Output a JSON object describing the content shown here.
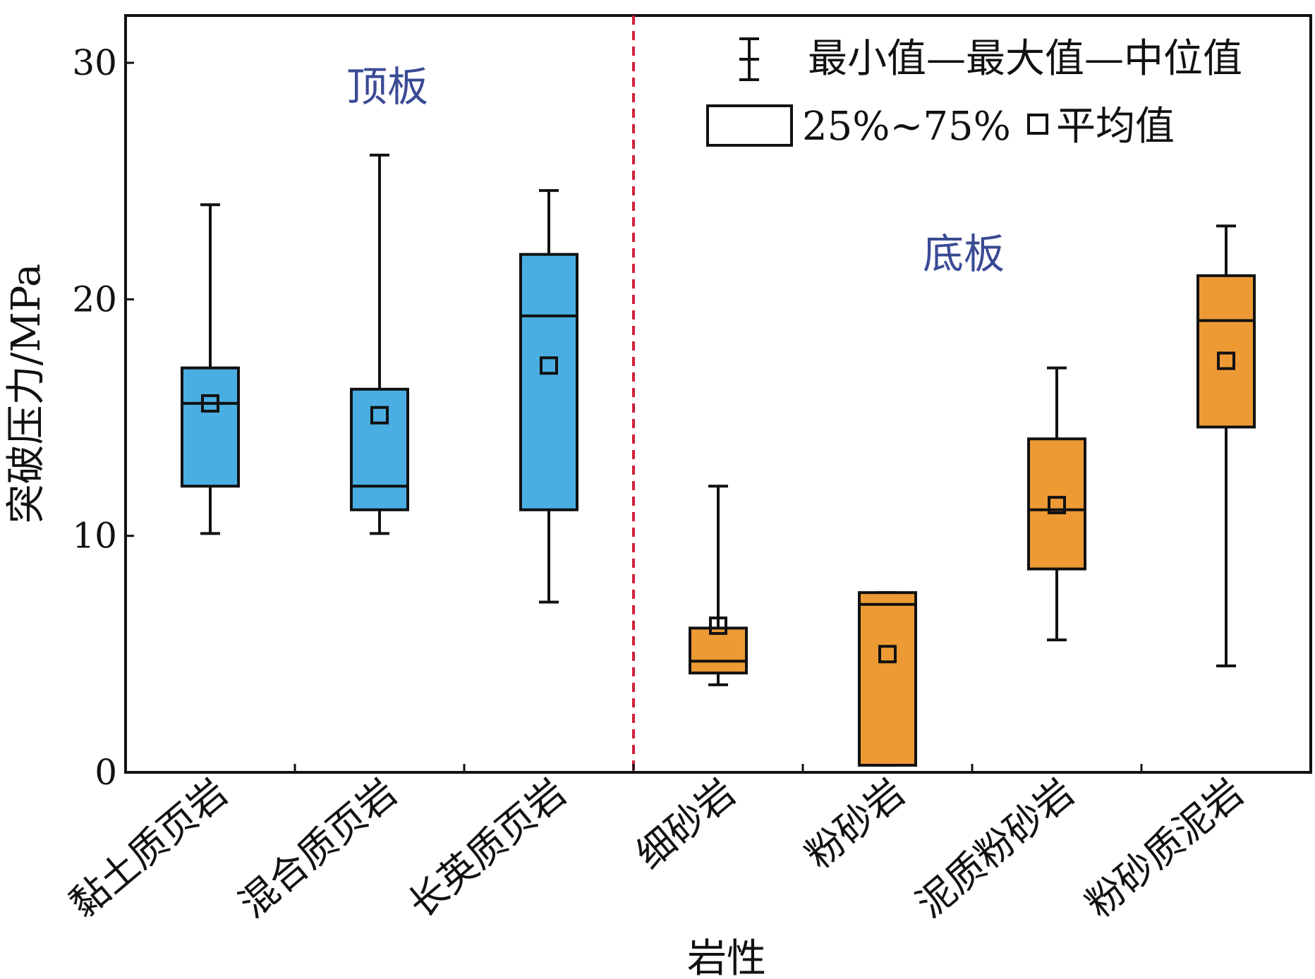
{
  "chart_data": {
    "type": "box",
    "ylabel": "突破压力/MPa",
    "xlabel": "岩性",
    "ylim": [
      0,
      32
    ],
    "yticks": [
      0,
      10,
      20,
      30
    ],
    "grid": false,
    "legend_position": "top-right",
    "legend": {
      "whisker_label": "最小值—最大值—中位值",
      "box_label": "25%~75%",
      "mean_label": "平均值"
    },
    "groups": [
      {
        "label": "顶板",
        "color": "#4aaee3"
      },
      {
        "label": "底板",
        "color": "#ed9a35"
      }
    ],
    "separator_color": "#d0233c",
    "categories": [
      "黏土质页岩",
      "混合质页岩",
      "长英质页岩",
      "细砂岩",
      "粉砂岩",
      "泥质粉砂岩",
      "粉砂质泥岩"
    ],
    "series": [
      {
        "category": "黏土质页岩",
        "group": 0,
        "min": 10.1,
        "q1": 12.1,
        "median": 15.6,
        "q3": 17.1,
        "max": 24.0,
        "mean": 15.6
      },
      {
        "category": "混合质页岩",
        "group": 0,
        "min": 10.1,
        "q1": 11.1,
        "median": 12.1,
        "q3": 16.2,
        "max": 26.1,
        "mean": 15.1
      },
      {
        "category": "长英质页岩",
        "group": 0,
        "min": 7.2,
        "q1": 11.1,
        "median": 19.3,
        "q3": 21.9,
        "max": 24.6,
        "mean": 17.2
      },
      {
        "category": "细砂岩",
        "group": 1,
        "min": 3.7,
        "q1": 4.2,
        "median": 4.7,
        "q3": 6.1,
        "max": 12.1,
        "mean": 6.2
      },
      {
        "category": "粉砂岩",
        "group": 1,
        "min": 0.3,
        "q1": 0.3,
        "median": 7.1,
        "q3": 7.6,
        "max": 7.6,
        "mean": 5.0
      },
      {
        "category": "泥质粉砂岩",
        "group": 1,
        "min": 5.6,
        "q1": 8.6,
        "median": 11.1,
        "q3": 14.1,
        "max": 17.1,
        "mean": 11.3
      },
      {
        "category": "粉砂质泥岩",
        "group": 1,
        "min": 4.5,
        "q1": 14.6,
        "median": 19.1,
        "q3": 21.0,
        "max": 23.1,
        "mean": 17.4
      }
    ]
  }
}
